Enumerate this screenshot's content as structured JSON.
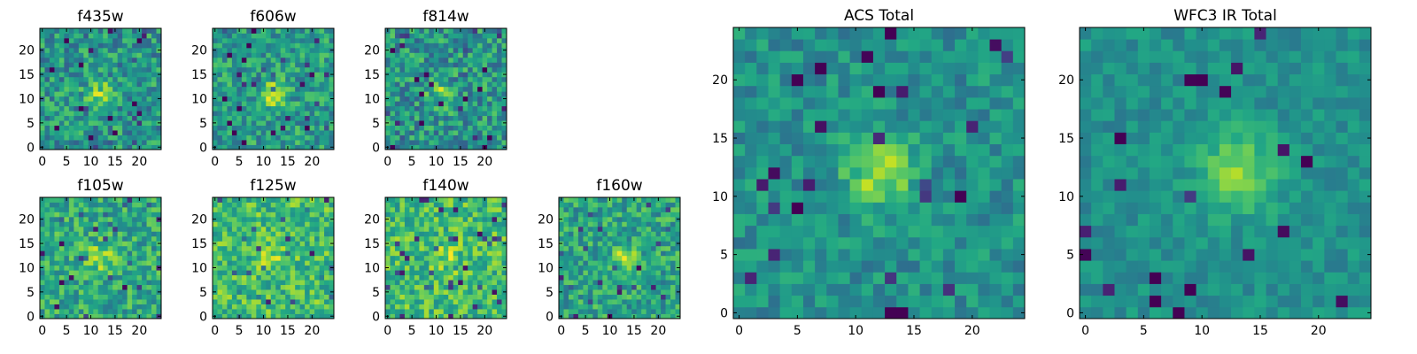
{
  "chart_data": {
    "type": "heatmap",
    "colormap": "viridis",
    "grid": false,
    "panels": [
      {
        "title": "f435w",
        "xticks": [
          0,
          5,
          10,
          15,
          20
        ],
        "yticks": [
          0,
          5,
          10,
          15,
          20
        ],
        "xlim": [
          0,
          24
        ],
        "ylim": [
          0,
          24
        ],
        "source_center": [
          12,
          11
        ],
        "source_sigma": 2.0,
        "source_amp": 0.28,
        "noise": 0.22,
        "base": 0.52,
        "seed": 11
      },
      {
        "title": "f606w",
        "xticks": [
          0,
          5,
          10,
          15,
          20
        ],
        "yticks": [
          0,
          5,
          10,
          15,
          20
        ],
        "xlim": [
          0,
          24
        ],
        "ylim": [
          0,
          24
        ],
        "source_center": [
          12,
          11
        ],
        "source_sigma": 1.8,
        "source_amp": 0.35,
        "noise": 0.2,
        "base": 0.55,
        "seed": 23
      },
      {
        "title": "f814w",
        "xticks": [
          0,
          5,
          10,
          15,
          20
        ],
        "yticks": [
          0,
          5,
          10,
          15,
          20
        ],
        "xlim": [
          0,
          24
        ],
        "ylim": [
          0,
          24
        ],
        "source_center": [
          11,
          11
        ],
        "source_sigma": 1.8,
        "source_amp": 0.25,
        "noise": 0.23,
        "base": 0.52,
        "seed": 37
      },
      {
        "title": "f105w",
        "xticks": [
          0,
          5,
          10,
          15,
          20
        ],
        "yticks": [
          0,
          5,
          10,
          15,
          20
        ],
        "xlim": [
          0,
          24
        ],
        "ylim": [
          0,
          24
        ],
        "source_center": [
          12,
          12
        ],
        "source_sigma": 2.2,
        "source_amp": 0.22,
        "noise": 0.2,
        "base": 0.6,
        "seed": 41
      },
      {
        "title": "f125w",
        "xticks": [
          0,
          5,
          10,
          15,
          20
        ],
        "yticks": [
          0,
          5,
          10,
          15,
          20
        ],
        "xlim": [
          0,
          24
        ],
        "ylim": [
          0,
          24
        ],
        "source_center": [
          12,
          12
        ],
        "source_sigma": 2.0,
        "source_amp": 0.15,
        "noise": 0.2,
        "base": 0.68,
        "seed": 53
      },
      {
        "title": "f140w",
        "xticks": [
          0,
          5,
          10,
          15,
          20
        ],
        "yticks": [
          0,
          5,
          10,
          15,
          20
        ],
        "xlim": [
          0,
          24
        ],
        "ylim": [
          0,
          24
        ],
        "source_center": [
          12,
          12
        ],
        "source_sigma": 2.0,
        "source_amp": 0.15,
        "noise": 0.2,
        "base": 0.68,
        "seed": 67
      },
      {
        "title": "f160w",
        "xticks": [
          0,
          5,
          10,
          15,
          20
        ],
        "yticks": [
          0,
          5,
          10,
          15,
          20
        ],
        "xlim": [
          0,
          24
        ],
        "ylim": [
          0,
          24
        ],
        "source_center": [
          13,
          12
        ],
        "source_sigma": 1.7,
        "source_amp": 0.32,
        "noise": 0.2,
        "base": 0.58,
        "seed": 79
      },
      {
        "title": "ACS Total",
        "xticks": [
          0,
          5,
          10,
          15,
          20
        ],
        "yticks": [
          0,
          5,
          10,
          15,
          20
        ],
        "xlim": [
          0,
          24
        ],
        "ylim": [
          0,
          24
        ],
        "source_center": [
          12,
          12
        ],
        "source_sigma": 2.0,
        "source_amp": 0.38,
        "noise": 0.14,
        "base": 0.5,
        "seed": 97
      },
      {
        "title": "WFC3 IR Total",
        "xticks": [
          0,
          5,
          10,
          15,
          20
        ],
        "yticks": [
          0,
          5,
          10,
          15,
          20
        ],
        "xlim": [
          0,
          24
        ],
        "ylim": [
          0,
          24
        ],
        "source_center": [
          13,
          12
        ],
        "source_sigma": 2.3,
        "source_amp": 0.35,
        "noise": 0.1,
        "base": 0.5,
        "seed": 113
      }
    ]
  }
}
